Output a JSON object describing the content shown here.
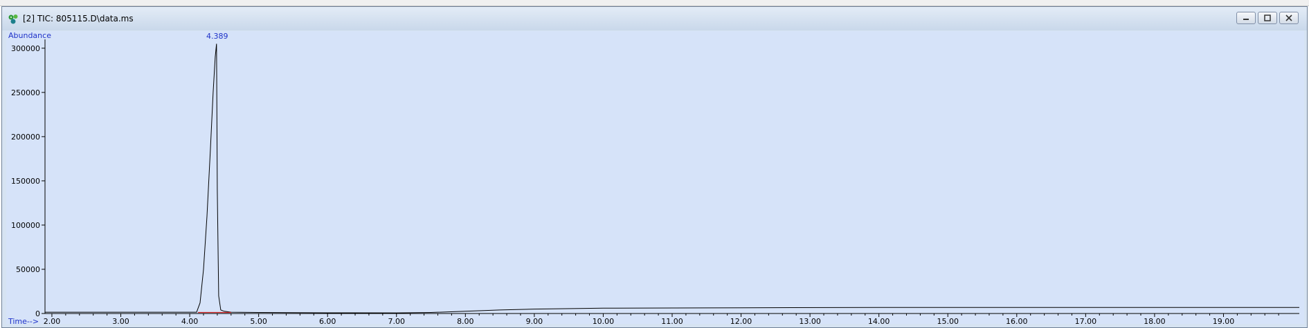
{
  "window": {
    "title": "[2] TIC: 805115.D\\data.ms",
    "icon": "chromatogram-app-icon",
    "buttons": [
      "minimize-icon",
      "restore-icon",
      "close-icon"
    ]
  },
  "colors": {
    "plot_background": "#d6e3f9",
    "trace": "#000000",
    "baseline_marker": "#d02020",
    "axis_label_text": "#1f32c8"
  },
  "chart_data": {
    "type": "line",
    "title": "",
    "ylabel": "Abundance",
    "xlabel": "Time-->",
    "xlim": [
      1.9,
      20.1
    ],
    "ylim": [
      0,
      310000
    ],
    "x_ticks": [
      "2.00",
      "3.00",
      "4.00",
      "5.00",
      "6.00",
      "7.00",
      "8.00",
      "9.00",
      "10.00",
      "11.00",
      "12.00",
      "13.00",
      "14.00",
      "15.00",
      "16.00",
      "17.00",
      "18.00",
      "19.00"
    ],
    "y_ticks": [
      "0",
      "50000",
      "100000",
      "150000",
      "200000",
      "250000",
      "300000"
    ],
    "peak_label": "4.389",
    "grid": false,
    "legend": "none",
    "series": [
      {
        "x": [
          1.9,
          4.1,
          4.15,
          4.2,
          4.25,
          4.3,
          4.34,
          4.37,
          4.389,
          4.4,
          4.42,
          4.45,
          4.5,
          4.6,
          5.0,
          6.0,
          7.0,
          7.5,
          8.0,
          8.5,
          9.0,
          10.0,
          12.0,
          14.0,
          16.0,
          18.0,
          20.1
        ],
        "y": [
          1500,
          1500,
          12000,
          50000,
          110000,
          185000,
          250000,
          290000,
          305000,
          140000,
          20000,
          4000,
          2500,
          1500,
          1200,
          800,
          700,
          1200,
          2500,
          4000,
          5000,
          6000,
          6500,
          6800,
          6800,
          6800,
          6800
        ]
      }
    ],
    "integration_baseline": {
      "x": [
        4.12,
        4.6
      ],
      "y": [
        1200,
        1200
      ]
    }
  }
}
